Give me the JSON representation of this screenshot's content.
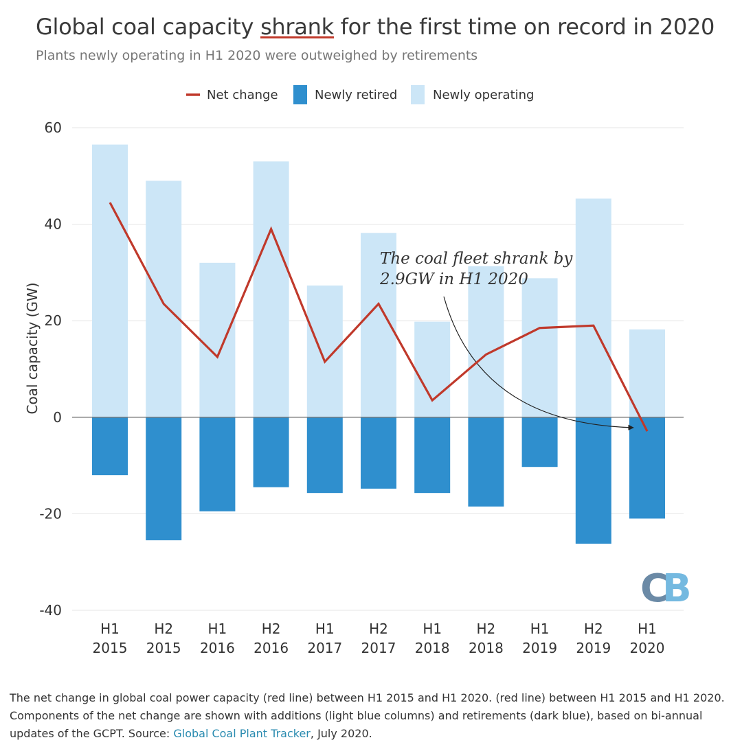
{
  "chart_data": {
    "type": "bar",
    "title_before": "Global coal capacity ",
    "title_highlight": "shrank",
    "title_after": " for the first time on record in 2020",
    "subtitle": "Plants newly operating in H1 2020 were outweighed by retirements",
    "ylabel": "Coal capacity (GW)",
    "ylim": [
      -40,
      60
    ],
    "yticks": [
      60,
      40,
      20,
      0,
      -20,
      -40
    ],
    "grid": true,
    "legend_position": "top-center",
    "categories": [
      [
        "H1",
        "2015"
      ],
      [
        "H2",
        "2015"
      ],
      [
        "H1",
        "2016"
      ],
      [
        "H2",
        "2016"
      ],
      [
        "H1",
        "2017"
      ],
      [
        "H2",
        "2017"
      ],
      [
        "H1",
        "2018"
      ],
      [
        "H2",
        "2018"
      ],
      [
        "H1",
        "2019"
      ],
      [
        "H2",
        "2019"
      ],
      [
        "H1",
        "2020"
      ]
    ],
    "series": [
      {
        "name": "Net change",
        "kind": "line",
        "color": "#c0392b",
        "values": [
          44.5,
          23.5,
          12.5,
          39,
          11.5,
          23.5,
          3.5,
          13,
          18.5,
          19,
          -2.9
        ]
      },
      {
        "name": "Newly retired",
        "kind": "bar",
        "color": "#2f8fce",
        "values": [
          -12,
          -25.5,
          -19.5,
          -14.5,
          -15.7,
          -14.8,
          -15.7,
          -18.5,
          -10.3,
          -26.2,
          -21
        ]
      },
      {
        "name": "Newly operating",
        "kind": "bar",
        "color": "#cce6f7",
        "values": [
          56.5,
          49,
          32,
          53,
          27.3,
          38.2,
          19.8,
          31.3,
          28.8,
          45.3,
          18.2
        ]
      }
    ],
    "annotation": {
      "line1": "The coal fleet shrank by",
      "line2": "2.9GW in H1 2020"
    },
    "logo": "CB"
  },
  "caption": {
    "text_before": "The net change in global coal power capacity (red line) between H1 2015 and H1 2020. (red line) between H1 2015 and H1 2020. Components of the net change are shown with additions (light blue columns) and retirements (dark blue), based on bi-annual updates of the GCPT. Source: ",
    "link": "Global Coal Plant Tracker",
    "text_after": ", July 2020."
  },
  "colors": {
    "accent": "#c0392b",
    "retired": "#2f8fce",
    "operating": "#cce6f7",
    "logo_dark": "#6b8aa6",
    "logo_light": "#74b9e0"
  }
}
